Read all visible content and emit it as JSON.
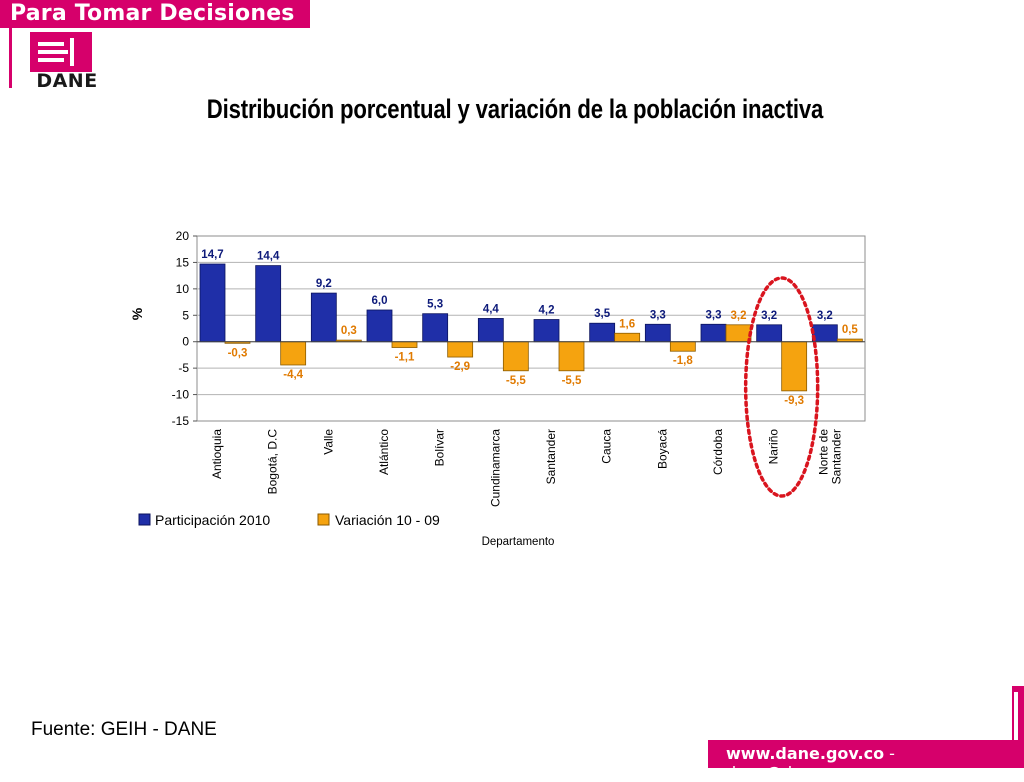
{
  "header": {
    "banner": "Para Tomar Decisiones",
    "logo_text": "DANE"
  },
  "title": "Distribución porcentual y variación de la población inactiva",
  "source": "Fuente: GEIH - DANE",
  "footer": {
    "url": "www.dane.gov.co",
    "separator": " - ",
    "email": "dane@dane.gov.co"
  },
  "colors": {
    "brand": "#d6006b",
    "series1": "#1f2fa8",
    "series2": "#f5a30f",
    "label1": "#0d1a7a",
    "label2": "#e07a00",
    "highlight_ellipse": "#d9141e"
  },
  "chart_data": {
    "type": "bar",
    "categories": [
      "Antioquia",
      "Bogotá, D.C",
      "Valle",
      "Atlántico",
      "Bolívar",
      "Cundinamarca",
      "Santander",
      "Cauca",
      "Boyacá",
      "Córdoba",
      "Nariño",
      "Norte de Santander"
    ],
    "series": [
      {
        "name": "Participación 2010",
        "values": [
          14.7,
          14.4,
          9.2,
          6.0,
          5.3,
          4.4,
          4.2,
          3.5,
          3.3,
          3.3,
          3.2,
          3.2
        ],
        "labels": [
          "14,7",
          "14,4",
          "9,2",
          "6,0",
          "5,3",
          "4,4",
          "4,2",
          "3,5",
          "3,3",
          "3,3",
          "3,2",
          "3,2"
        ]
      },
      {
        "name": "Variación 10 - 09",
        "values": [
          -0.3,
          -4.4,
          0.3,
          -1.1,
          -2.9,
          -5.5,
          -5.5,
          1.6,
          -1.8,
          3.2,
          -9.3,
          0.5
        ],
        "labels": [
          "-0,3",
          "-4,4",
          "0,3",
          "-1,1",
          "-2,9",
          "-5,5",
          "-5,5",
          "1,6",
          "-1,8",
          "3,2",
          "-9,3",
          "0,5"
        ]
      }
    ],
    "xlabel": "Departamento",
    "ylabel": "%",
    "ylim": [
      -15,
      20
    ],
    "yticks": [
      20,
      15,
      10,
      5,
      0,
      -5,
      -10,
      -15
    ],
    "grid": true,
    "legend": "bottom-left",
    "highlight": "Nariño"
  }
}
